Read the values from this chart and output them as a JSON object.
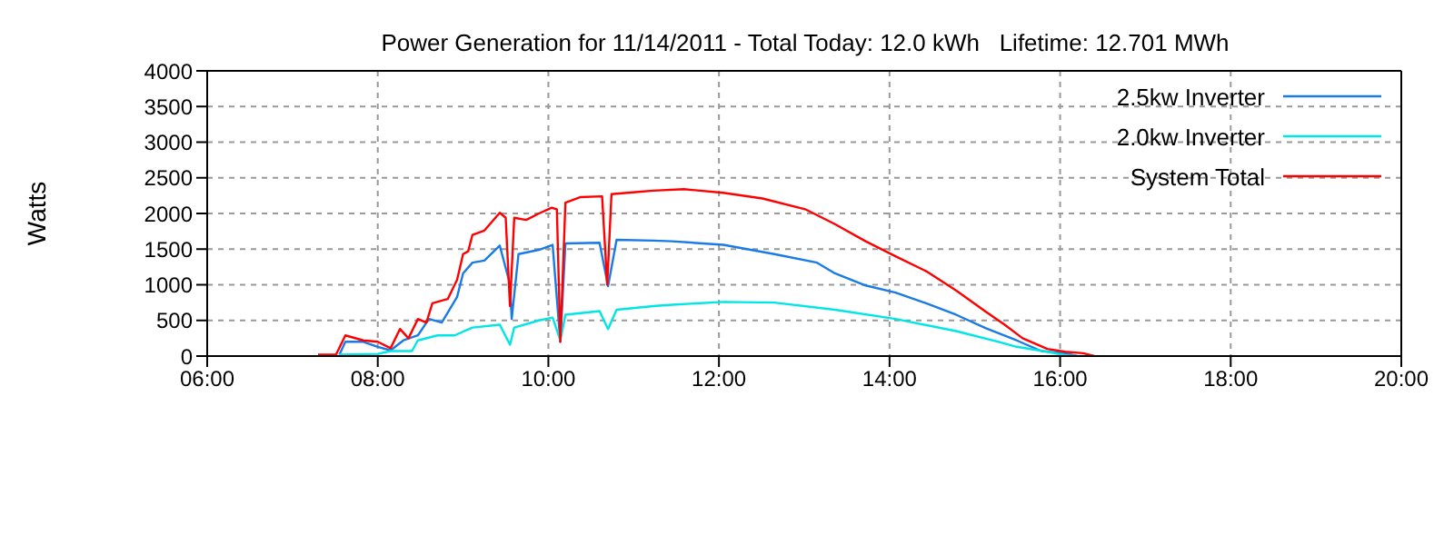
{
  "chart_data": {
    "type": "line",
    "title": "Power Generation for 11/14/2011 - Total Today: 12.0 kWh   Lifetime: 12.701 MWh",
    "ylabel": "Watts",
    "xlim": [
      6,
      20
    ],
    "xticks": [
      {
        "value": 6,
        "label": "06:00"
      },
      {
        "value": 8,
        "label": "08:00"
      },
      {
        "value": 10,
        "label": "10:00"
      },
      {
        "value": 12,
        "label": "12:00"
      },
      {
        "value": 14,
        "label": "14:00"
      },
      {
        "value": 16,
        "label": "16:00"
      },
      {
        "value": 18,
        "label": "18:00"
      },
      {
        "value": 20,
        "label": "20:00"
      }
    ],
    "ylim": [
      0,
      4000
    ],
    "yticks": [
      0,
      500,
      1000,
      1500,
      2000,
      2500,
      3000,
      3500,
      4000
    ],
    "grid": true,
    "legend": "top right",
    "marker": "none",
    "line_style": "solid",
    "series": [
      {
        "name": "2.5kw Inverter",
        "color": "#1a7ae6",
        "x": [
          7.55,
          7.62,
          7.83,
          8.0,
          8.15,
          8.3,
          8.47,
          8.6,
          8.75,
          8.93,
          9.0,
          9.11,
          9.25,
          9.43,
          9.55,
          9.57,
          9.65,
          9.89,
          10.05,
          10.14,
          10.2,
          10.6,
          10.7,
          10.8,
          11.23,
          11.45,
          12.05,
          12.65,
          13.15,
          13.36,
          13.72,
          14.07,
          14.43,
          14.78,
          15.13,
          15.49,
          15.78,
          16.06,
          16.2
        ],
        "values": [
          20,
          200,
          200,
          130,
          80,
          220,
          290,
          520,
          470,
          830,
          1160,
          1310,
          1340,
          1550,
          1010,
          520,
          1430,
          1490,
          1560,
          200,
          1580,
          1590,
          980,
          1630,
          1620,
          1610,
          1560,
          1430,
          1310,
          1160,
          990,
          890,
          740,
          580,
          390,
          220,
          70,
          40,
          0
        ]
      },
      {
        "name": "2.0kw Inverter",
        "color": "#00e5e5",
        "x": [
          7.55,
          8.0,
          8.15,
          8.4,
          8.47,
          8.7,
          8.9,
          9.11,
          9.43,
          9.55,
          9.6,
          9.89,
          10.05,
          10.14,
          10.2,
          10.6,
          10.7,
          10.8,
          11.23,
          11.45,
          12.05,
          12.65,
          13.36,
          14.07,
          14.78,
          15.28,
          15.49,
          15.85,
          16.06,
          16.2
        ],
        "values": [
          20,
          30,
          70,
          70,
          220,
          290,
          290,
          400,
          440,
          160,
          400,
          500,
          540,
          220,
          580,
          630,
          380,
          650,
          700,
          720,
          760,
          750,
          650,
          520,
          350,
          200,
          130,
          60,
          10,
          0
        ]
      },
      {
        "name": "System Total",
        "color": "#ff0000",
        "x": [
          7.3,
          7.51,
          7.62,
          7.83,
          8.0,
          8.15,
          8.26,
          8.36,
          8.47,
          8.57,
          8.64,
          8.82,
          8.93,
          9.0,
          9.06,
          9.11,
          9.25,
          9.43,
          9.5,
          9.55,
          9.6,
          9.74,
          9.89,
          10.04,
          10.1,
          10.14,
          10.2,
          10.38,
          10.63,
          10.69,
          10.74,
          11.02,
          11.23,
          11.59,
          12.05,
          12.51,
          13.01,
          13.36,
          13.72,
          14.07,
          14.43,
          14.78,
          15.13,
          15.35,
          15.56,
          15.85,
          16.06,
          16.27,
          16.4
        ],
        "values": [
          20,
          20,
          290,
          220,
          200,
          110,
          380,
          250,
          520,
          470,
          740,
          800,
          1070,
          1430,
          1470,
          1700,
          1760,
          2010,
          1940,
          700,
          1940,
          1910,
          2000,
          2080,
          2060,
          200,
          2150,
          2230,
          2240,
          1000,
          2270,
          2300,
          2320,
          2340,
          2290,
          2210,
          2060,
          1850,
          1610,
          1400,
          1190,
          920,
          620,
          440,
          250,
          100,
          60,
          40,
          0
        ]
      }
    ]
  }
}
